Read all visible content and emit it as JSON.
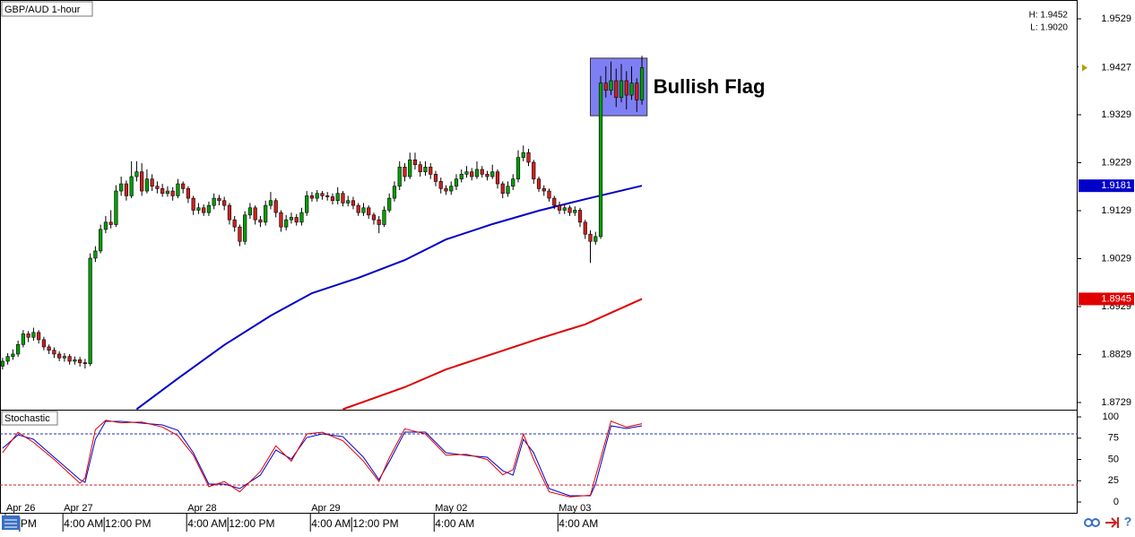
{
  "chart_data": [
    {
      "type": "candlestick",
      "title": "GBP/AUD 1-hour",
      "high_text": "H: 1.9452",
      "low_text": "L: 1.9020",
      "xlim": [
        -0.5,
        208.5
      ],
      "ylim": [
        1.8714,
        1.95683
      ],
      "yticks": [
        1.9529,
        1.9429,
        1.9329,
        1.9229,
        1.9129,
        1.9029,
        1.8929,
        1.8829,
        1.8729
      ],
      "up_color": "#00a000",
      "down_color": "#d02020",
      "candles": [
        [
          1.8805,
          1.8822,
          1.8798,
          1.8815
        ],
        [
          1.8815,
          1.8832,
          1.8808,
          1.8825
        ],
        [
          1.8825,
          1.884,
          1.8818,
          1.883
        ],
        [
          1.883,
          1.8858,
          1.8824,
          1.885
        ],
        [
          1.885,
          1.888,
          1.8844,
          1.8872
        ],
        [
          1.8872,
          1.8878,
          1.8855,
          1.8865
        ],
        [
          1.8865,
          1.8885,
          1.8858,
          1.8875
        ],
        [
          1.8875,
          1.888,
          1.8852,
          1.886
        ],
        [
          1.886,
          1.8866,
          1.8838,
          1.8845
        ],
        [
          1.8845,
          1.885,
          1.883,
          1.8838
        ],
        [
          1.8838,
          1.8844,
          1.8822,
          1.883
        ],
        [
          1.883,
          1.8836,
          1.8815,
          1.8822
        ],
        [
          1.8822,
          1.8832,
          1.8814,
          1.8825
        ],
        [
          1.8825,
          1.883,
          1.8808,
          1.8815
        ],
        [
          1.8815,
          1.8825,
          1.8808,
          1.8818
        ],
        [
          1.8818,
          1.8824,
          1.8804,
          1.8812
        ],
        [
          1.8812,
          1.882,
          1.88,
          1.881
        ],
        [
          1.881,
          1.904,
          1.8805,
          1.903
        ],
        [
          1.903,
          1.9055,
          1.9022,
          1.9045
        ],
        [
          1.9045,
          1.91,
          1.904,
          1.909
        ],
        [
          1.909,
          1.9118,
          1.9082,
          1.9105
        ],
        [
          1.9105,
          1.913,
          1.9092,
          1.91
        ],
        [
          1.91,
          1.9182,
          1.9095,
          1.917
        ],
        [
          1.917,
          1.92,
          1.916,
          1.9185
        ],
        [
          1.9185,
          1.9192,
          1.915,
          1.916
        ],
        [
          1.916,
          1.9232,
          1.9155,
          1.92
        ],
        [
          1.92,
          1.9232,
          1.919,
          1.921
        ],
        [
          1.921,
          1.9228,
          1.916,
          1.917
        ],
        [
          1.917,
          1.9215,
          1.9165,
          1.9195
        ],
        [
          1.9195,
          1.9205,
          1.917,
          1.918
        ],
        [
          1.918,
          1.919,
          1.9165,
          1.9175
        ],
        [
          1.9175,
          1.9185,
          1.9158,
          1.9165
        ],
        [
          1.9165,
          1.918,
          1.9158,
          1.917
        ],
        [
          1.917,
          1.9178,
          1.915,
          1.916
        ],
        [
          1.916,
          1.9195,
          1.9155,
          1.9185
        ],
        [
          1.9185,
          1.919,
          1.9165,
          1.9175
        ],
        [
          1.9175,
          1.918,
          1.9145,
          1.9155
        ],
        [
          1.9155,
          1.916,
          1.912,
          1.913
        ],
        [
          1.913,
          1.9145,
          1.9122,
          1.9135
        ],
        [
          1.9135,
          1.9142,
          1.9118,
          1.9125
        ],
        [
          1.9125,
          1.9148,
          1.9118,
          1.914
        ],
        [
          1.914,
          1.9165,
          1.9132,
          1.9155
        ],
        [
          1.9155,
          1.9162,
          1.914,
          1.915
        ],
        [
          1.915,
          1.9158,
          1.913,
          1.914
        ],
        [
          1.914,
          1.9145,
          1.91,
          1.911
        ],
        [
          1.911,
          1.9118,
          1.9085,
          1.9095
        ],
        [
          1.9095,
          1.91,
          1.9055,
          1.9065
        ],
        [
          1.9065,
          1.9128,
          1.9058,
          1.912
        ],
        [
          1.912,
          1.9145,
          1.9112,
          1.9135
        ],
        [
          1.9135,
          1.914,
          1.91,
          1.911
        ],
        [
          1.911,
          1.9118,
          1.9095,
          1.9105
        ],
        [
          1.9105,
          1.915,
          1.9098,
          1.914
        ],
        [
          1.914,
          1.9168,
          1.9132,
          1.915
        ],
        [
          1.915,
          1.9155,
          1.9115,
          1.9125
        ],
        [
          1.9125,
          1.913,
          1.9085,
          1.9095
        ],
        [
          1.9095,
          1.912,
          1.9088,
          1.911
        ],
        [
          1.911,
          1.9125,
          1.9102,
          1.9115
        ],
        [
          1.9115,
          1.9122,
          1.9098,
          1.9105
        ],
        [
          1.9105,
          1.9135,
          1.9098,
          1.9125
        ],
        [
          1.9125,
          1.917,
          1.9118,
          1.916
        ],
        [
          1.916,
          1.9168,
          1.9148,
          1.9155
        ],
        [
          1.9155,
          1.9172,
          1.9148,
          1.9165
        ],
        [
          1.9165,
          1.917,
          1.9152,
          1.916
        ],
        [
          1.916,
          1.9168,
          1.915,
          1.9158
        ],
        [
          1.9158,
          1.9165,
          1.9142,
          1.915
        ],
        [
          1.915,
          1.9178,
          1.9142,
          1.9165
        ],
        [
          1.9165,
          1.917,
          1.9138,
          1.9145
        ],
        [
          1.9145,
          1.916,
          1.9138,
          1.915
        ],
        [
          1.915,
          1.9158,
          1.9132,
          1.914
        ],
        [
          1.914,
          1.9145,
          1.9118,
          1.9125
        ],
        [
          1.9125,
          1.9145,
          1.9118,
          1.9135
        ],
        [
          1.9135,
          1.914,
          1.9112,
          1.912
        ],
        [
          1.912,
          1.9125,
          1.91,
          1.911
        ],
        [
          1.911,
          1.9118,
          1.9082,
          1.91
        ],
        [
          1.91,
          1.9138,
          1.9095,
          1.913
        ],
        [
          1.913,
          1.9165,
          1.9125,
          1.9155
        ],
        [
          1.9155,
          1.919,
          1.9148,
          1.918
        ],
        [
          1.918,
          1.9232,
          1.9172,
          1.922
        ],
        [
          1.922,
          1.9228,
          1.919,
          1.92
        ],
        [
          1.92,
          1.925,
          1.9195,
          1.9235
        ],
        [
          1.9235,
          1.925,
          1.9215,
          1.9225
        ],
        [
          1.9225,
          1.9232,
          1.92,
          1.921
        ],
        [
          1.921,
          1.9232,
          1.9202,
          1.922
        ],
        [
          1.922,
          1.9228,
          1.9195,
          1.9205
        ],
        [
          1.9205,
          1.9212,
          1.918,
          1.919
        ],
        [
          1.919,
          1.9198,
          1.9165,
          1.9175
        ],
        [
          1.9175,
          1.9182,
          1.9162,
          1.917
        ],
        [
          1.917,
          1.919,
          1.9162,
          1.918
        ],
        [
          1.918,
          1.9205,
          1.9172,
          1.9195
        ],
        [
          1.9195,
          1.9215,
          1.9188,
          1.9205
        ],
        [
          1.9205,
          1.9222,
          1.9198,
          1.921
        ],
        [
          1.921,
          1.9218,
          1.9192,
          1.92
        ],
        [
          1.92,
          1.9232,
          1.9195,
          1.9215
        ],
        [
          1.9215,
          1.9222,
          1.9198,
          1.9205
        ],
        [
          1.9205,
          1.9212,
          1.9192,
          1.92
        ],
        [
          1.92,
          1.9225,
          1.9195,
          1.921
        ],
        [
          1.921,
          1.9215,
          1.9175,
          1.9185
        ],
        [
          1.9185,
          1.919,
          1.9155,
          1.9165
        ],
        [
          1.9165,
          1.919,
          1.9158,
          1.918
        ],
        [
          1.918,
          1.9205,
          1.9172,
          1.9195
        ],
        [
          1.9195,
          1.9255,
          1.9188,
          1.924
        ],
        [
          1.924,
          1.9265,
          1.9232,
          1.925
        ],
        [
          1.925,
          1.9258,
          1.9222,
          1.923
        ],
        [
          1.923,
          1.9235,
          1.9185,
          1.9195
        ],
        [
          1.9195,
          1.92,
          1.9168,
          1.9175
        ],
        [
          1.9175,
          1.9182,
          1.916,
          1.917
        ],
        [
          1.917,
          1.9175,
          1.9148,
          1.9155
        ],
        [
          1.9155,
          1.916,
          1.9132,
          1.914
        ],
        [
          1.914,
          1.9148,
          1.9122,
          1.913
        ],
        [
          1.913,
          1.9142,
          1.9122,
          1.9135
        ],
        [
          1.9135,
          1.914,
          1.9118,
          1.9125
        ],
        [
          1.9125,
          1.9138,
          1.9118,
          1.913
        ],
        [
          1.913,
          1.9135,
          1.9095,
          1.9105
        ],
        [
          1.9105,
          1.911,
          1.907,
          1.908
        ],
        [
          1.908,
          1.9088,
          1.902,
          1.9065
        ],
        [
          1.9065,
          1.9085,
          1.9058,
          1.9075
        ],
        [
          1.9075,
          1.941,
          1.907,
          1.9395
        ],
        [
          1.9395,
          1.943,
          1.9365,
          1.938
        ],
        [
          1.938,
          1.944,
          1.937,
          1.94
        ],
        [
          1.94,
          1.9425,
          1.9345,
          1.9365
        ],
        [
          1.9365,
          1.9435,
          1.9355,
          1.94
        ],
        [
          1.94,
          1.942,
          1.934,
          1.937
        ],
        [
          1.937,
          1.943,
          1.936,
          1.9395
        ],
        [
          1.9395,
          1.9405,
          1.9335,
          1.936
        ],
        [
          1.936,
          1.9452,
          1.935,
          1.9427
        ]
      ],
      "ma": [
        {
          "color": "#0000c8",
          "x": [
            26,
            34,
            43,
            52,
            60,
            69,
            78,
            86,
            95,
            104,
            113,
            124
          ],
          "values": [
            1.8715,
            1.8779,
            1.8849,
            1.891,
            1.8957,
            1.8989,
            1.9026,
            1.9069,
            1.9101,
            1.9129,
            1.9153,
            1.9181
          ]
        },
        {
          "color": "#e00000",
          "x": [
            66,
            78,
            86,
            95,
            104,
            113,
            124
          ],
          "values": [
            1.8715,
            1.8761,
            1.8798,
            1.883,
            1.8862,
            1.8892,
            1.8945
          ]
        }
      ],
      "price_markers": [
        {
          "value": 1.9427,
          "bg": "#ffffff",
          "fg": "#000000"
        },
        {
          "value": 1.9181,
          "bg": "#0000c8",
          "fg": "#ffffff"
        },
        {
          "value": 1.8945,
          "bg": "#e00000",
          "fg": "#ffffff"
        }
      ],
      "annotation": {
        "text": "Bullish Flag",
        "x_range": [
          114,
          125
        ],
        "price_range": [
          1.9327,
          1.9447
        ],
        "color": "#7f7ff5"
      }
    },
    {
      "type": "line",
      "title": "Stochastic",
      "xlim": [
        -0.5,
        208.5
      ],
      "ylim": [
        -13.7,
        107.4
      ],
      "yticks": [
        0,
        25,
        50,
        75,
        100
      ],
      "levels": [
        {
          "value": 80,
          "color": "#2233aa"
        },
        {
          "value": 20,
          "color": "#cc2222"
        }
      ],
      "x": [
        0,
        3,
        6,
        10,
        15,
        16,
        18,
        20,
        23,
        27,
        31,
        34,
        37,
        40,
        43,
        46,
        50,
        53,
        56,
        59,
        62,
        66,
        70,
        73,
        75,
        78,
        82,
        86,
        90,
        94,
        97,
        99,
        101,
        103,
        106,
        110,
        114,
        115,
        118,
        121,
        124
      ],
      "series": [
        {
          "color": "#0000d0",
          "values": [
            63.2,
            78.9,
            73.7,
            52.6,
            26.3,
            23.2,
            73.7,
            94.7,
            94.7,
            92.6,
            90.5,
            84.2,
            57.9,
            21.1,
            21.1,
            15.8,
            31.6,
            61.1,
            50.5,
            75.8,
            80.0,
            76.8,
            52.6,
            26.3,
            47.4,
            82.1,
            82.1,
            57.9,
            54.7,
            52.6,
            36.8,
            31.6,
            73.7,
            57.9,
            15.8,
            7.4,
            7.4,
            21.1,
            89.5,
            86.3,
            89.5
          ]
        },
        {
          "color": "#e00000",
          "values": [
            58,
            82,
            70,
            50,
            22,
            28,
            85,
            96,
            93,
            94,
            88,
            78,
            55,
            18,
            24,
            12,
            36,
            66,
            48,
            80,
            82,
            72,
            48,
            24,
            52,
            86,
            80,
            55,
            56,
            50,
            32,
            38,
            80,
            50,
            12,
            6,
            8,
            30,
            95,
            88,
            92
          ]
        }
      ],
      "xticks": [
        {
          "value": 0.54,
          "label": "Apr 26"
        },
        {
          "value": 11.7,
          "label": "Apr 27"
        },
        {
          "value": 35.7,
          "label": "Apr 28"
        },
        {
          "value": 59.7,
          "label": "Apr 29"
        },
        {
          "value": 83.7,
          "label": "May 02"
        },
        {
          "value": 107.7,
          "label": "May 03"
        }
      ],
      "xticks_time": [
        {
          "value": 3.3,
          "label": "PM"
        },
        {
          "value": 11.7,
          "label": "4:00 AM"
        },
        {
          "value": 19.7,
          "label": "12:00 PM"
        },
        {
          "value": 35.7,
          "label": "4:00 AM"
        },
        {
          "value": 43.7,
          "label": "12:00 PM"
        },
        {
          "value": 59.7,
          "label": "4:00 AM"
        },
        {
          "value": 67.7,
          "label": "12:00 PM"
        },
        {
          "value": 83.7,
          "label": "4:00 AM"
        },
        {
          "value": 107.7,
          "label": "4:00 AM"
        }
      ]
    }
  ],
  "toolbar": {
    "help": "?"
  }
}
